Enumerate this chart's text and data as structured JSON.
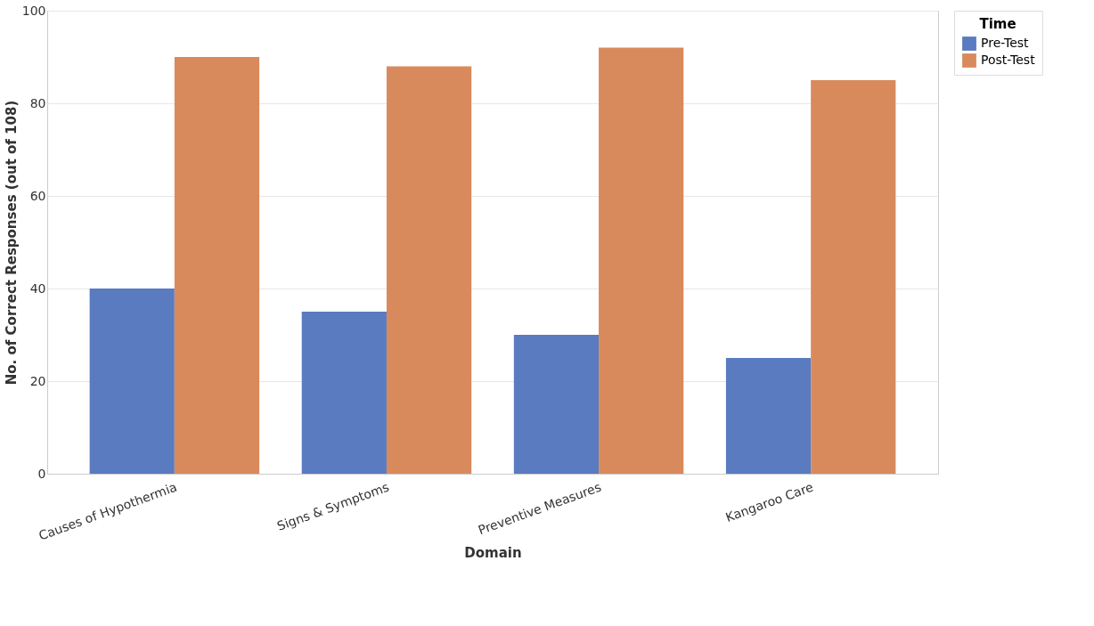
{
  "chart_data": {
    "type": "bar",
    "xlabel": "Domain",
    "ylabel": "No. of Correct Responses (out of 108)",
    "legend_title": "Time",
    "categories": [
      "Causes of Hypothermia",
      "Signs & Symptoms",
      "Preventive Measures",
      "Kangaroo Care"
    ],
    "series": [
      {
        "name": "Pre-Test",
        "color": "#5a7bc0",
        "values": [
          40,
          35,
          30,
          25
        ]
      },
      {
        "name": "Post-Test",
        "color": "#d98a5c",
        "values": [
          90,
          88,
          92,
          85
        ]
      }
    ],
    "ylim": [
      0,
      100
    ],
    "yticks": [
      0,
      20,
      40,
      60,
      80,
      100
    ],
    "grid": "y",
    "legend": "right"
  }
}
